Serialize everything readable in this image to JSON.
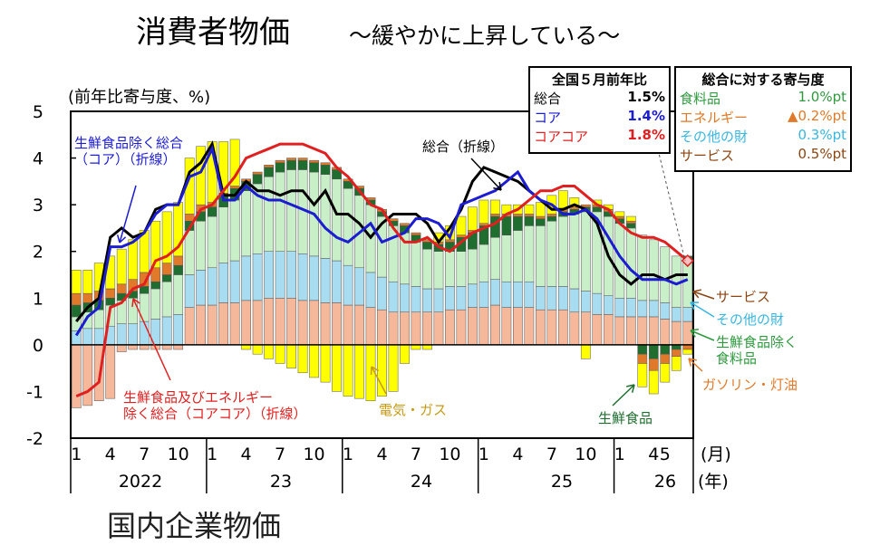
{
  "title": "消費者物価",
  "subtitle": "～緩やかに上昇している～",
  "unit_label": "(前年比寄与度、%)",
  "yoy_box": {
    "header": "全国５月前年比",
    "rows": [
      {
        "label": "総合",
        "value": "1.5%",
        "color": "#000000"
      },
      {
        "label": "コア",
        "value": "1.4%",
        "color": "#1c1cd0"
      },
      {
        "label": "コアコア",
        "value": "1.8%",
        "color": "#e02020"
      }
    ]
  },
  "contrib_box": {
    "header": "総合に対する寄与度",
    "rows": [
      {
        "label": "食料品",
        "value": "1.0%pt",
        "color": "#2e9a3e"
      },
      {
        "label": "エネルギー",
        "value": "▲0.2%pt",
        "color": "#e07a2a"
      },
      {
        "label": "その他の財",
        "value": "0.3%pt",
        "color": "#38b6e0"
      },
      {
        "label": "サービス",
        "value": "0.5%pt",
        "color": "#8b4513"
      }
    ]
  },
  "annotations": {
    "core_line": "生鮮食品除く総合\n（コア）（折線）",
    "total_line": "総合（折線）",
    "corecore_line": "生鮮食品及びエネルギー\n除く総合（コアコア）（折線）",
    "electricity": "電気・ガス",
    "fresh_food": "生鮮食品",
    "services": "サービス",
    "other_goods": "その他の財",
    "food_ex_fresh": "生鮮食品除く\n食料品",
    "gasoline": "ガソリン・灯油"
  },
  "bottom_text": "国内企業物価",
  "chart_data": {
    "type": "bar",
    "stacked": true,
    "x_tick_labels": [
      "1",
      "4",
      "7",
      "10",
      "1",
      "4",
      "7",
      "10",
      "1",
      "4",
      "7",
      "10",
      "1",
      "4",
      "7",
      "10",
      "1",
      "4",
      "5"
    ],
    "year_labels": [
      "2022",
      "23",
      "24",
      "25",
      "26"
    ],
    "x_unit": "(月)",
    "year_unit": "(年)",
    "ylim": [
      -2,
      5
    ],
    "y_ticks": [
      "-2",
      "-1",
      "0",
      "1",
      "2",
      "3",
      "4",
      "5"
    ],
    "colors": {
      "services": "#f5b89a",
      "other_goods": "#a8dcf0",
      "food_ex_fresh": "#c8efc8",
      "fresh_food": "#1f6e30",
      "gasoline": "#e07a2a",
      "electricity_gas": "#ffff00",
      "total": "#000000",
      "core": "#1c1cd0",
      "corecore": "#e02020"
    },
    "series": [
      {
        "name": "サービス",
        "values": [
          -1.35,
          -1.3,
          -1.2,
          -1.15,
          -0.15,
          -0.1,
          -0.1,
          -0.1,
          -0.1,
          -0.1,
          0.8,
          0.85,
          0.85,
          0.9,
          0.9,
          0.95,
          0.95,
          1.0,
          1.0,
          1.0,
          0.95,
          0.95,
          0.9,
          0.9,
          0.85,
          0.85,
          0.8,
          0.75,
          0.7,
          0.7,
          0.7,
          0.7,
          0.7,
          0.75,
          0.75,
          0.8,
          0.8,
          0.85,
          0.8,
          0.8,
          0.8,
          0.75,
          0.75,
          0.75,
          0.7,
          0.7,
          0.65,
          0.65,
          0.6,
          0.6,
          0.6,
          0.6,
          0.55,
          0.5,
          0.5
        ]
      },
      {
        "name": "その他の財",
        "values": [
          0.3,
          0.35,
          0.35,
          0.4,
          0.45,
          0.45,
          0.5,
          0.55,
          0.6,
          0.65,
          0.7,
          0.75,
          0.8,
          0.85,
          0.9,
          0.95,
          1.0,
          1.0,
          1.0,
          1.0,
          1.0,
          0.95,
          0.95,
          0.9,
          0.85,
          0.8,
          0.75,
          0.7,
          0.65,
          0.6,
          0.55,
          0.5,
          0.5,
          0.5,
          0.5,
          0.5,
          0.55,
          0.55,
          0.55,
          0.55,
          0.55,
          0.5,
          0.5,
          0.5,
          0.5,
          0.45,
          0.45,
          0.4,
          0.4,
          0.4,
          0.35,
          0.35,
          0.35,
          0.3,
          0.3
        ]
      },
      {
        "name": "生鮮食品除く食料品",
        "values": [
          0.3,
          0.35,
          0.4,
          0.45,
          0.5,
          0.55,
          0.6,
          0.65,
          0.75,
          0.85,
          0.95,
          1.05,
          1.1,
          1.2,
          1.3,
          1.4,
          1.5,
          1.6,
          1.7,
          1.75,
          1.8,
          1.8,
          1.8,
          1.75,
          1.65,
          1.55,
          1.45,
          1.3,
          1.2,
          1.1,
          0.95,
          0.85,
          0.8,
          0.75,
          0.75,
          0.75,
          0.8,
          0.9,
          1.0,
          1.1,
          1.2,
          1.3,
          1.4,
          1.5,
          1.6,
          1.7,
          1.75,
          1.7,
          1.6,
          1.5,
          1.4,
          1.3,
          1.2,
          1.1,
          1.0
        ]
      },
      {
        "name": "生鮮食品",
        "values": [
          0.25,
          0.2,
          0.2,
          0.15,
          0.15,
          0.15,
          0.15,
          0.15,
          0.15,
          0.2,
          0.2,
          0.2,
          0.2,
          0.25,
          0.25,
          0.2,
          0.2,
          0.2,
          0.2,
          0.2,
          0.2,
          0.2,
          0.2,
          0.2,
          0.15,
          0.15,
          0.1,
          0.1,
          0.1,
          0.15,
          0.15,
          0.15,
          0.15,
          0.2,
          0.3,
          0.35,
          0.4,
          0.45,
          0.4,
          0.3,
          0.2,
          0.15,
          0.1,
          0.1,
          0.1,
          0.1,
          0.1,
          0.1,
          0.1,
          0.1,
          -0.2,
          -0.3,
          -0.2,
          -0.1,
          0.1
        ]
      },
      {
        "name": "ガソリン・灯油",
        "values": [
          0.25,
          0.2,
          0.2,
          0.2,
          0.2,
          0.25,
          0.3,
          0.3,
          0.25,
          0.2,
          0.15,
          0.15,
          0.1,
          0.05,
          0.05,
          0.05,
          0.05,
          0.05,
          0.05,
          0.05,
          0.05,
          0.05,
          0.05,
          0.05,
          0.05,
          0.05,
          0.05,
          0.05,
          0.05,
          0.05,
          0.05,
          0.05,
          0.05,
          0.05,
          0.05,
          0.05,
          0.05,
          0.05,
          0.05,
          0.05,
          0.05,
          0.05,
          0.05,
          0.05,
          0.05,
          0.05,
          0.05,
          0.05,
          0.05,
          0.05,
          -0.2,
          -0.25,
          -0.2,
          -0.15,
          -0.1
        ]
      },
      {
        "name": "電気・ガス",
        "values": [
          0.5,
          0.5,
          0.6,
          0.7,
          0.75,
          0.85,
          0.9,
          1.0,
          1.1,
          1.15,
          1.2,
          1.25,
          1.3,
          1.1,
          1.0,
          -0.1,
          -0.2,
          -0.3,
          -0.4,
          -0.5,
          -0.6,
          -0.7,
          -0.8,
          -1.0,
          -1.1,
          -1.15,
          -1.2,
          -1.1,
          -1.0,
          -0.4,
          -0.1,
          -0.1,
          0.2,
          0.3,
          0.4,
          0.5,
          0.5,
          0.3,
          0.2,
          0.2,
          0.2,
          0.3,
          0.4,
          0.4,
          0.2,
          -0.3,
          0.1,
          0.1,
          0.1,
          0.1,
          -0.5,
          -0.5,
          -0.4,
          -0.3,
          -0.1
        ]
      },
      {
        "name": "総合",
        "type": "line",
        "values": [
          0.5,
          0.8,
          1.0,
          2.3,
          2.5,
          2.3,
          2.4,
          2.9,
          3.0,
          3.0,
          3.7,
          3.9,
          4.3,
          3.2,
          3.2,
          3.5,
          3.3,
          3.3,
          3.2,
          3.3,
          3.3,
          3.0,
          3.3,
          2.8,
          2.8,
          2.6,
          2.3,
          2.6,
          2.8,
          2.8,
          2.8,
          2.6,
          2.2,
          2.5,
          2.9,
          3.5,
          3.8,
          3.7,
          3.6,
          3.5,
          3.3,
          3.1,
          2.9,
          2.9,
          3.0,
          2.9,
          2.6,
          1.9,
          1.5,
          1.3,
          1.5,
          1.5,
          1.4,
          1.5,
          1.5
        ]
      },
      {
        "name": "コア",
        "type": "line",
        "values": [
          0.2,
          0.6,
          0.8,
          2.1,
          2.1,
          2.2,
          2.4,
          2.8,
          3.0,
          3.0,
          3.6,
          3.7,
          4.2,
          3.1,
          3.1,
          3.4,
          3.2,
          3.1,
          3.1,
          3.0,
          2.9,
          2.8,
          2.5,
          2.3,
          2.2,
          2.4,
          2.6,
          2.2,
          2.3,
          2.4,
          2.7,
          2.7,
          2.6,
          2.3,
          3.0,
          3.1,
          3.2,
          3.3,
          3.5,
          3.7,
          3.3,
          3.1,
          3.0,
          2.8,
          2.8,
          2.9,
          2.7,
          2.3,
          1.9,
          1.6,
          1.4,
          1.4,
          1.4,
          1.3,
          1.4
        ]
      },
      {
        "name": "コアコア",
        "type": "line",
        "values": [
          -1.1,
          -1.0,
          -0.8,
          0.8,
          0.9,
          1.2,
          1.3,
          1.8,
          1.9,
          2.1,
          2.5,
          2.9,
          3.0,
          3.3,
          3.6,
          4.0,
          4.1,
          4.2,
          4.3,
          4.3,
          4.3,
          4.2,
          4.1,
          3.8,
          3.6,
          3.3,
          3.0,
          2.9,
          2.5,
          2.2,
          2.2,
          2.3,
          2.1,
          2.0,
          2.2,
          2.4,
          2.5,
          2.6,
          2.8,
          2.9,
          3.1,
          3.3,
          3.3,
          3.4,
          3.4,
          3.2,
          3.0,
          2.9,
          2.6,
          2.4,
          2.3,
          2.3,
          2.2,
          2.0,
          1.8
        ]
      }
    ]
  }
}
